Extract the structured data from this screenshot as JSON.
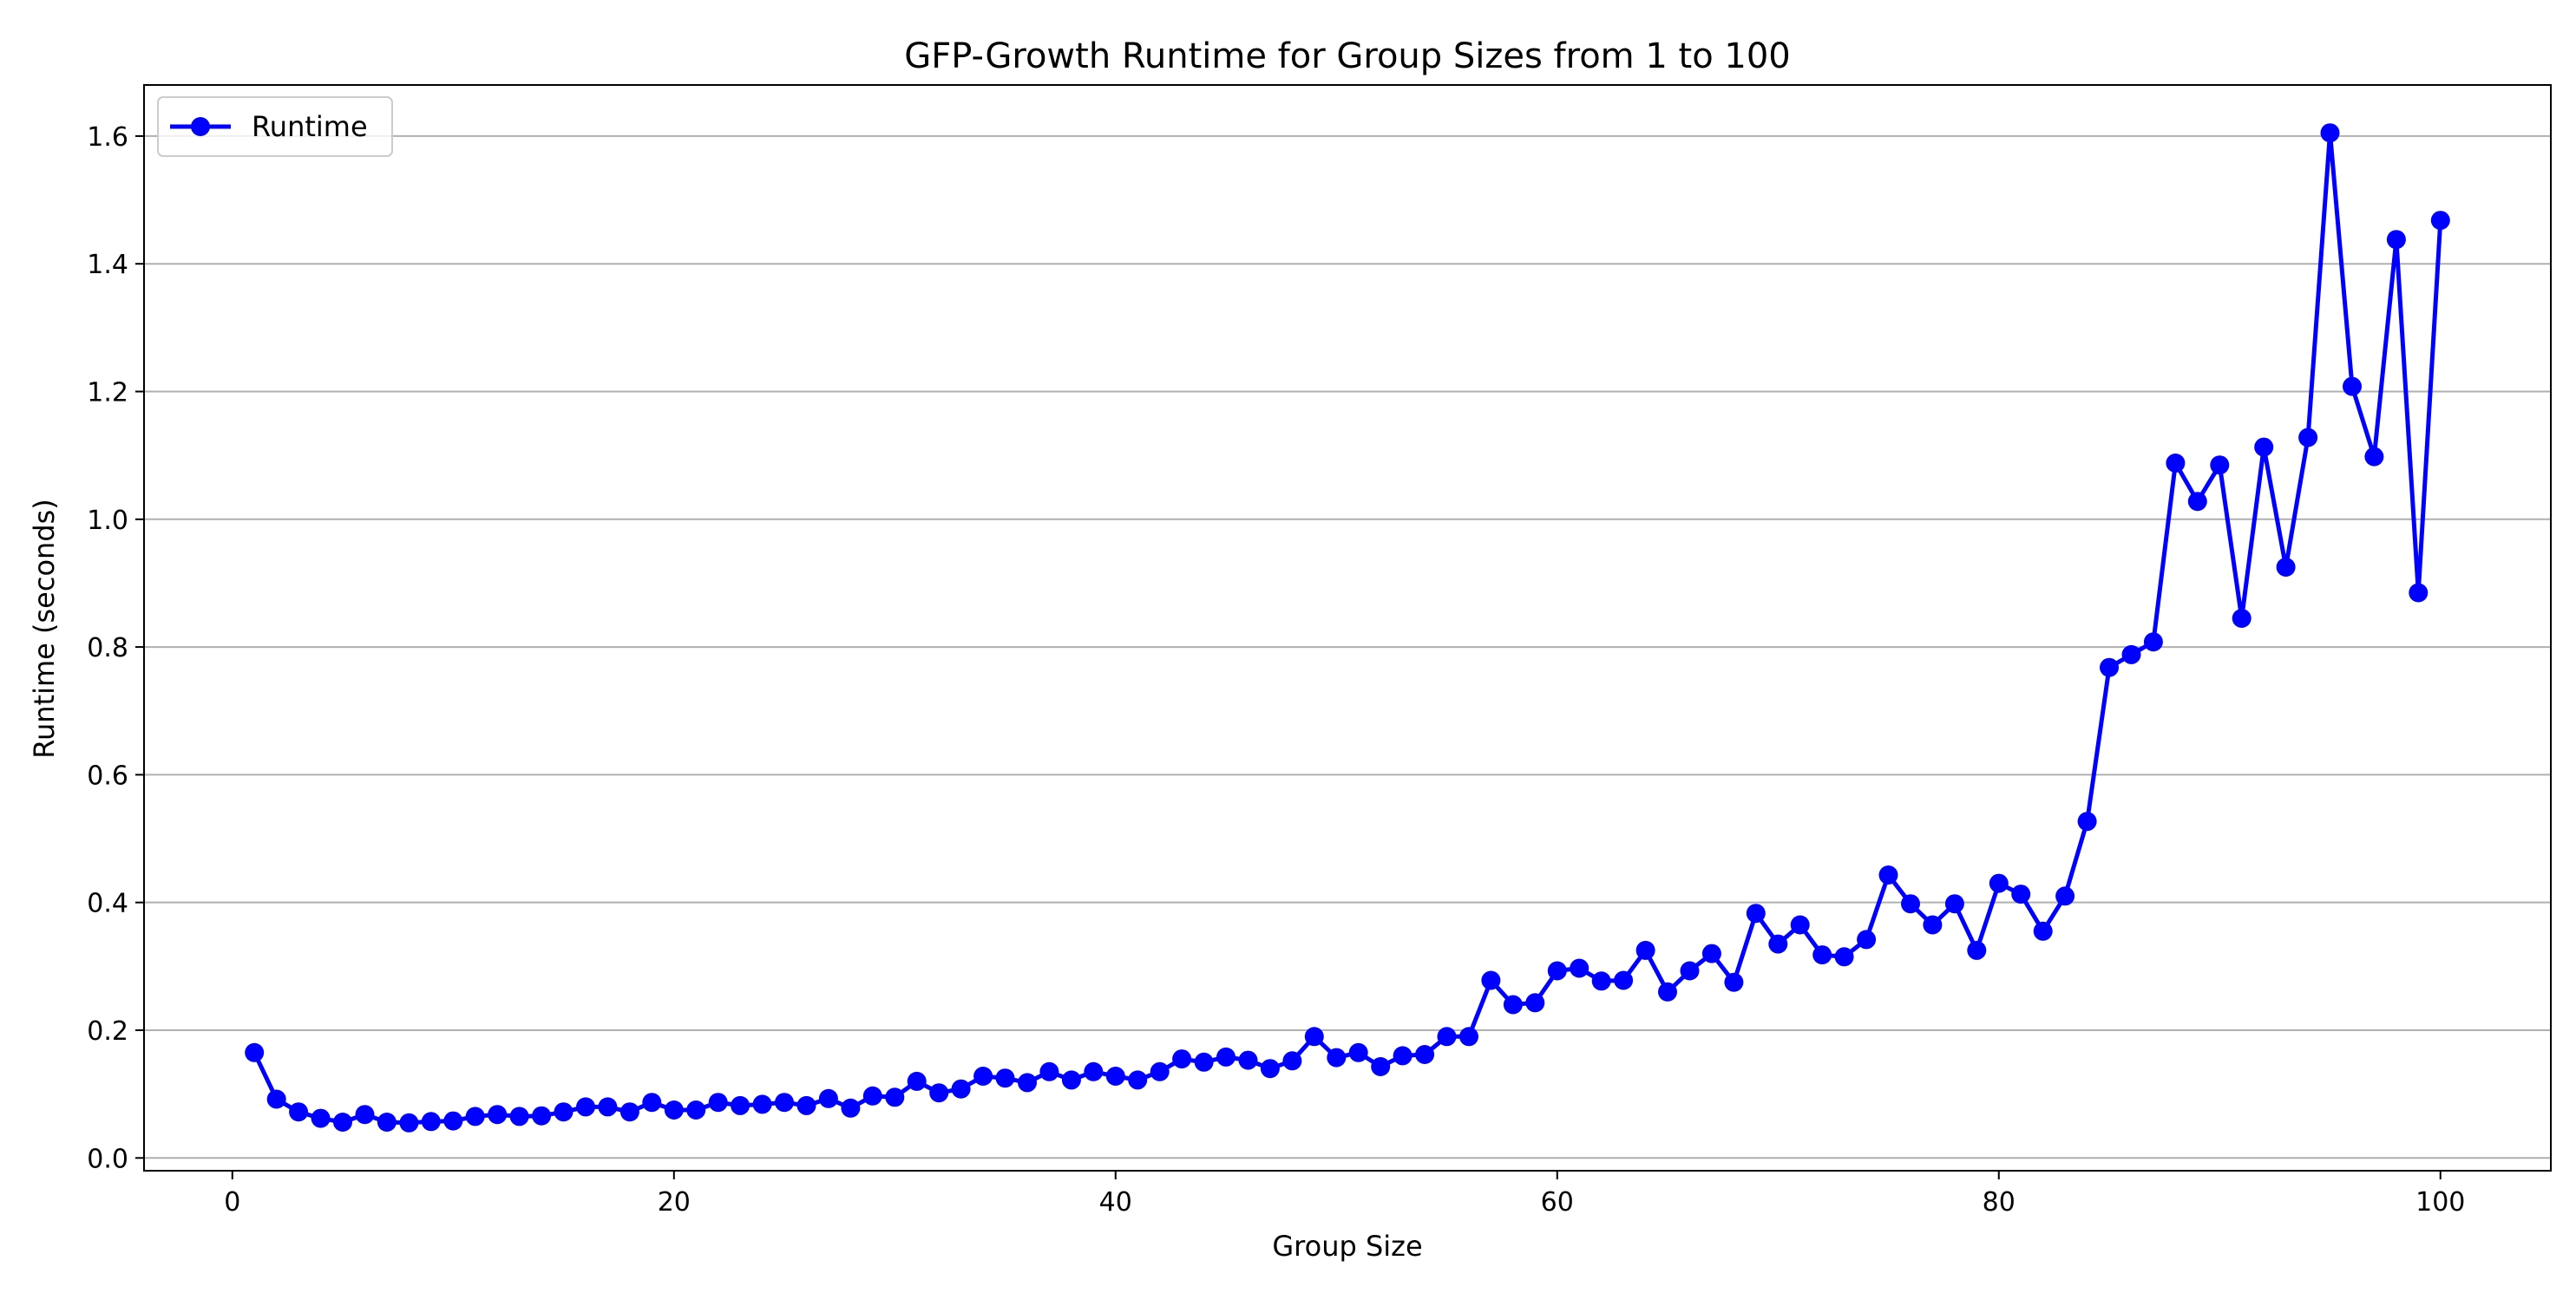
{
  "chart_data": {
    "type": "line",
    "title": "GFP-Growth Runtime for Group Sizes from 1 to 100",
    "xlabel": "Group Size",
    "ylabel": "Runtime (seconds)",
    "xlim": [
      -4,
      105
    ],
    "ylim": [
      -0.02,
      1.68
    ],
    "x_ticks": [
      0,
      20,
      40,
      60,
      80,
      100
    ],
    "y_ticks": [
      0.0,
      0.2,
      0.4,
      0.6,
      0.8,
      1.0,
      1.2,
      1.4,
      1.6
    ],
    "x_tick_labels": [
      "0",
      "20",
      "40",
      "60",
      "80",
      "100"
    ],
    "y_tick_labels": [
      "0.0",
      "0.2",
      "0.4",
      "0.6",
      "0.8",
      "1.0",
      "1.2",
      "1.4",
      "1.6"
    ],
    "grid": "y-major",
    "legend_position": "top-left",
    "series": [
      {
        "name": "Runtime",
        "color": "#0000ff",
        "marker": "circle",
        "x": [
          1,
          2,
          3,
          4,
          5,
          6,
          7,
          8,
          9,
          10,
          11,
          12,
          13,
          14,
          15,
          16,
          17,
          18,
          19,
          20,
          21,
          22,
          23,
          24,
          25,
          26,
          27,
          28,
          29,
          30,
          31,
          32,
          33,
          34,
          35,
          36,
          37,
          38,
          39,
          40,
          41,
          42,
          43,
          44,
          45,
          46,
          47,
          48,
          49,
          50,
          51,
          52,
          53,
          54,
          55,
          56,
          57,
          58,
          59,
          60,
          61,
          62,
          63,
          64,
          65,
          66,
          67,
          68,
          69,
          70,
          71,
          72,
          73,
          74,
          75,
          76,
          77,
          78,
          79,
          80,
          81,
          82,
          83,
          84,
          85,
          86,
          87,
          88,
          89,
          90,
          91,
          92,
          93,
          94,
          95,
          96,
          97,
          98,
          99,
          100
        ],
        "y": [
          0.165,
          0.092,
          0.072,
          0.062,
          0.056,
          0.068,
          0.056,
          0.055,
          0.057,
          0.058,
          0.065,
          0.068,
          0.065,
          0.066,
          0.072,
          0.08,
          0.08,
          0.072,
          0.087,
          0.075,
          0.075,
          0.087,
          0.082,
          0.084,
          0.087,
          0.082,
          0.093,
          0.078,
          0.097,
          0.095,
          0.12,
          0.102,
          0.108,
          0.128,
          0.125,
          0.118,
          0.135,
          0.122,
          0.135,
          0.128,
          0.122,
          0.135,
          0.155,
          0.15,
          0.158,
          0.153,
          0.14,
          0.152,
          0.19,
          0.157,
          0.165,
          0.143,
          0.16,
          0.162,
          0.19,
          0.19,
          0.278,
          0.24,
          0.243,
          0.293,
          0.297,
          0.277,
          0.278,
          0.325,
          0.26,
          0.293,
          0.32,
          0.275,
          0.383,
          0.335,
          0.365,
          0.318,
          0.315,
          0.342,
          0.443,
          0.398,
          0.365,
          0.398,
          0.325,
          0.43,
          0.413,
          0.355,
          0.41,
          0.527,
          0.768,
          0.788,
          0.808,
          1.088,
          1.028,
          1.085,
          0.845,
          1.113,
          0.925,
          1.128,
          1.605,
          1.208,
          1.098,
          1.438,
          0.885,
          1.468
        ]
      }
    ]
  }
}
